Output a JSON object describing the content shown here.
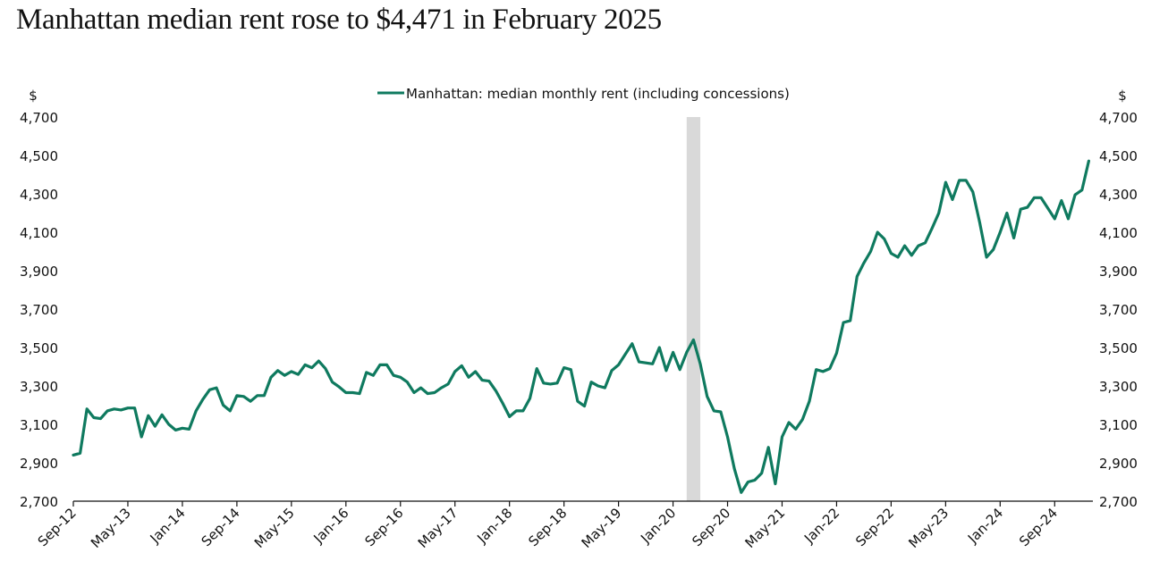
{
  "title": "Manhattan median rent rose to $4,471 in February 2025",
  "chart_data": {
    "type": "line",
    "title": "Manhattan median rent rose to $4,471 in February 2025",
    "xlabel": "",
    "ylabel_left": "$",
    "ylabel_right": "$",
    "ylim": [
      2700,
      4700
    ],
    "yticks": [
      2700,
      2900,
      3100,
      3300,
      3500,
      3700,
      3900,
      4100,
      4300,
      4500,
      4700
    ],
    "ytick_labels": [
      "2,700",
      "2,900",
      "3,100",
      "3,300",
      "3,500",
      "3,700",
      "3,900",
      "4,100",
      "4,300",
      "4,500",
      "4,700"
    ],
    "xtick_labels": [
      "Sep-12",
      "May-13",
      "Jan-14",
      "Sep-14",
      "May-15",
      "Jan-16",
      "Sep-16",
      "May-17",
      "Jan-18",
      "Sep-18",
      "May-19",
      "Jan-20",
      "Sep-20",
      "May-21",
      "Jan-22",
      "Sep-22",
      "May-23",
      "Jan-24",
      "Sep-24"
    ],
    "xtick_every_months": 8,
    "x_start": "Sep-12",
    "x_end": "Feb-25",
    "grid": false,
    "legend_position": "top-center",
    "shaded_period": {
      "start": "Mar-20",
      "end": "Apr-20",
      "color": "#d9d9d9"
    },
    "line_color": "#0f7a5f",
    "series": [
      {
        "name": "Manhattan: median monthly rent (including concessions)",
        "values": [
          2940,
          2950,
          3180,
          3135,
          3130,
          3170,
          3180,
          3175,
          3185,
          3185,
          3035,
          3145,
          3090,
          3150,
          3100,
          3070,
          3080,
          3075,
          3170,
          3230,
          3280,
          3290,
          3200,
          3170,
          3250,
          3245,
          3220,
          3250,
          3250,
          3345,
          3380,
          3355,
          3375,
          3360,
          3410,
          3395,
          3430,
          3390,
          3320,
          3295,
          3265,
          3265,
          3260,
          3370,
          3355,
          3410,
          3410,
          3355,
          3345,
          3320,
          3265,
          3290,
          3260,
          3265,
          3290,
          3310,
          3375,
          3405,
          3345,
          3375,
          3330,
          3325,
          3275,
          3210,
          3140,
          3170,
          3170,
          3235,
          3390,
          3315,
          3310,
          3315,
          3395,
          3385,
          3220,
          3195,
          3320,
          3300,
          3290,
          3380,
          3410,
          3465,
          3520,
          3425,
          3420,
          3415,
          3500,
          3380,
          3475,
          3385,
          3475,
          3540,
          3415,
          3245,
          3170,
          3165,
          3035,
          2870,
          2745,
          2800,
          2810,
          2845,
          2980,
          2790,
          3035,
          3110,
          3075,
          3125,
          3220,
          3385,
          3375,
          3390,
          3470,
          3630,
          3640,
          3870,
          3940,
          4000,
          4100,
          4065,
          3990,
          3970,
          4030,
          3980,
          4030,
          4045,
          4120,
          4200,
          4360,
          4270,
          4370,
          4370,
          4310,
          4150,
          3970,
          4010,
          4100,
          4200,
          4070,
          4220,
          4230,
          4280,
          4280,
          4225,
          4170,
          4265,
          4170,
          4295,
          4320,
          4471
        ]
      }
    ],
    "annotation_last_value": 4471
  }
}
